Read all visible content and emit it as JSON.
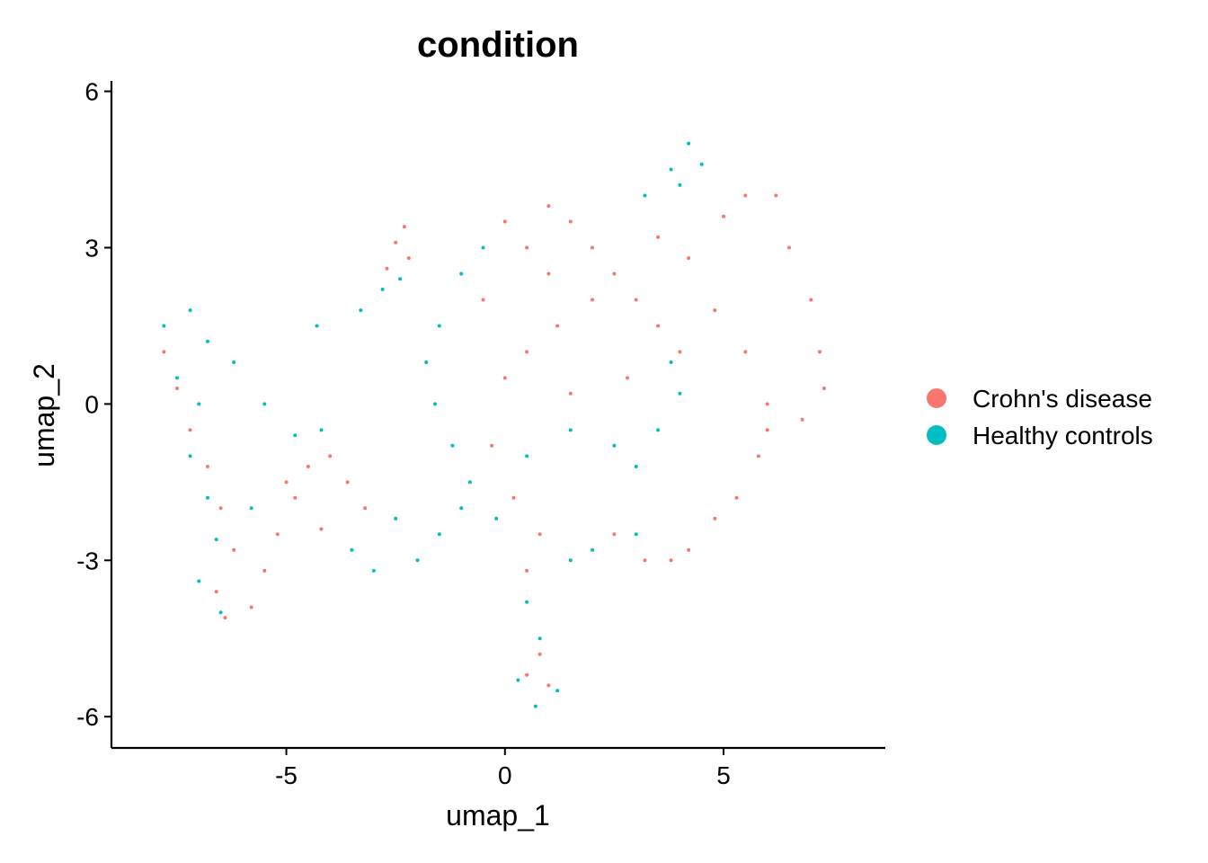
{
  "chart_data": {
    "type": "scatter",
    "title": "condition",
    "xlabel": "umap_1",
    "ylabel": "umap_2",
    "xlim": [
      -9.0,
      8.7
    ],
    "ylim": [
      -6.6,
      6.2
    ],
    "x_ticks": [
      {
        "value": -5,
        "label": "-5"
      },
      {
        "value": 0,
        "label": "0"
      },
      {
        "value": 5,
        "label": "5"
      }
    ],
    "y_ticks": [
      {
        "value": -6,
        "label": "-6"
      },
      {
        "value": -3,
        "label": "-3"
      },
      {
        "value": 0,
        "label": "0"
      },
      {
        "value": 3,
        "label": "3"
      },
      {
        "value": 6,
        "label": "6"
      }
    ],
    "grid": false,
    "legend_position": "right",
    "series": [
      {
        "name": "Crohn's disease",
        "color": "#F8766D",
        "points": [
          [
            -7.8,
            1.0
          ],
          [
            -7.5,
            0.3
          ],
          [
            -7.2,
            -0.5
          ],
          [
            -6.8,
            -1.2
          ],
          [
            -6.5,
            -2.0
          ],
          [
            -6.2,
            -2.8
          ],
          [
            -6.6,
            -3.6
          ],
          [
            -6.4,
            -4.1
          ],
          [
            -5.8,
            -3.9
          ],
          [
            -5.5,
            -3.2
          ],
          [
            -5.2,
            -2.5
          ],
          [
            -4.8,
            -1.8
          ],
          [
            -4.5,
            -1.2
          ],
          [
            -4.0,
            -1.0
          ],
          [
            -3.6,
            -1.5
          ],
          [
            -3.2,
            -2.0
          ],
          [
            -4.2,
            -2.4
          ],
          [
            -5.0,
            -1.5
          ],
          [
            -2.5,
            3.1
          ],
          [
            -2.2,
            2.8
          ],
          [
            -2.7,
            2.6
          ],
          [
            -2.3,
            3.4
          ],
          [
            -0.5,
            2.0
          ],
          [
            0.0,
            3.5
          ],
          [
            0.5,
            3.0
          ],
          [
            1.0,
            3.8
          ],
          [
            1.5,
            3.5
          ],
          [
            2.0,
            3.0
          ],
          [
            2.5,
            2.5
          ],
          [
            3.0,
            2.0
          ],
          [
            3.5,
            1.5
          ],
          [
            4.0,
            1.0
          ],
          [
            1.2,
            1.5
          ],
          [
            0.5,
            1.0
          ],
          [
            0.0,
            0.5
          ],
          [
            1.5,
            0.2
          ],
          [
            2.8,
            0.5
          ],
          [
            3.5,
            3.2
          ],
          [
            4.2,
            2.8
          ],
          [
            5.0,
            3.6
          ],
          [
            5.5,
            4.0
          ],
          [
            6.2,
            4.0
          ],
          [
            6.5,
            3.0
          ],
          [
            7.0,
            2.0
          ],
          [
            7.2,
            1.0
          ],
          [
            7.3,
            0.3
          ],
          [
            6.8,
            -0.3
          ],
          [
            6.0,
            0.0
          ],
          [
            5.5,
            1.0
          ],
          [
            4.8,
            1.8
          ],
          [
            2.0,
            2.0
          ],
          [
            1.0,
            2.5
          ],
          [
            -0.3,
            -0.8
          ],
          [
            0.2,
            -1.8
          ],
          [
            0.8,
            -2.5
          ],
          [
            0.5,
            -3.2
          ],
          [
            0.8,
            -4.8
          ],
          [
            0.5,
            -5.2
          ],
          [
            1.0,
            -5.4
          ],
          [
            2.5,
            -2.5
          ],
          [
            3.2,
            -3.0
          ],
          [
            3.8,
            -3.0
          ],
          [
            4.2,
            -2.8
          ],
          [
            4.8,
            -2.2
          ],
          [
            5.3,
            -1.8
          ],
          [
            5.8,
            -1.0
          ],
          [
            6.0,
            -0.5
          ]
        ]
      },
      {
        "name": "Healthy controls",
        "color": "#00BFC4",
        "points": [
          [
            -7.8,
            1.5
          ],
          [
            -7.2,
            1.8
          ],
          [
            -6.8,
            1.2
          ],
          [
            -7.5,
            0.5
          ],
          [
            -7.0,
            0.0
          ],
          [
            -7.2,
            -1.0
          ],
          [
            -6.8,
            -1.8
          ],
          [
            -6.6,
            -2.6
          ],
          [
            -7.0,
            -3.4
          ],
          [
            -6.5,
            -4.0
          ],
          [
            -5.8,
            -2.0
          ],
          [
            -5.5,
            0.0
          ],
          [
            -6.2,
            0.8
          ],
          [
            -4.8,
            -0.6
          ],
          [
            -4.2,
            -0.5
          ],
          [
            -3.5,
            -2.8
          ],
          [
            -3.0,
            -3.2
          ],
          [
            -2.5,
            -2.2
          ],
          [
            -2.0,
            -3.0
          ],
          [
            -1.5,
            -2.5
          ],
          [
            -1.0,
            -2.0
          ],
          [
            -2.8,
            2.2
          ],
          [
            -3.3,
            1.8
          ],
          [
            -2.4,
            2.4
          ],
          [
            -4.3,
            1.5
          ],
          [
            -1.5,
            1.5
          ],
          [
            -1.8,
            0.8
          ],
          [
            -1.6,
            0.0
          ],
          [
            -1.2,
            -0.8
          ],
          [
            -0.8,
            -1.5
          ],
          [
            -0.2,
            -2.2
          ],
          [
            0.5,
            -1.0
          ],
          [
            1.5,
            -0.5
          ],
          [
            2.5,
            -0.8
          ],
          [
            3.0,
            -1.2
          ],
          [
            3.5,
            -0.5
          ],
          [
            4.0,
            0.2
          ],
          [
            3.8,
            0.8
          ],
          [
            -1.0,
            2.5
          ],
          [
            -0.5,
            3.0
          ],
          [
            3.8,
            4.5
          ],
          [
            4.2,
            5.0
          ],
          [
            4.0,
            4.2
          ],
          [
            3.2,
            4.0
          ],
          [
            4.5,
            4.6
          ],
          [
            0.5,
            -3.8
          ],
          [
            0.8,
            -4.5
          ],
          [
            0.3,
            -5.3
          ],
          [
            0.7,
            -5.8
          ],
          [
            1.2,
            -5.5
          ],
          [
            1.5,
            -3.0
          ],
          [
            2.0,
            -2.8
          ],
          [
            3.0,
            -2.5
          ]
        ]
      }
    ]
  }
}
